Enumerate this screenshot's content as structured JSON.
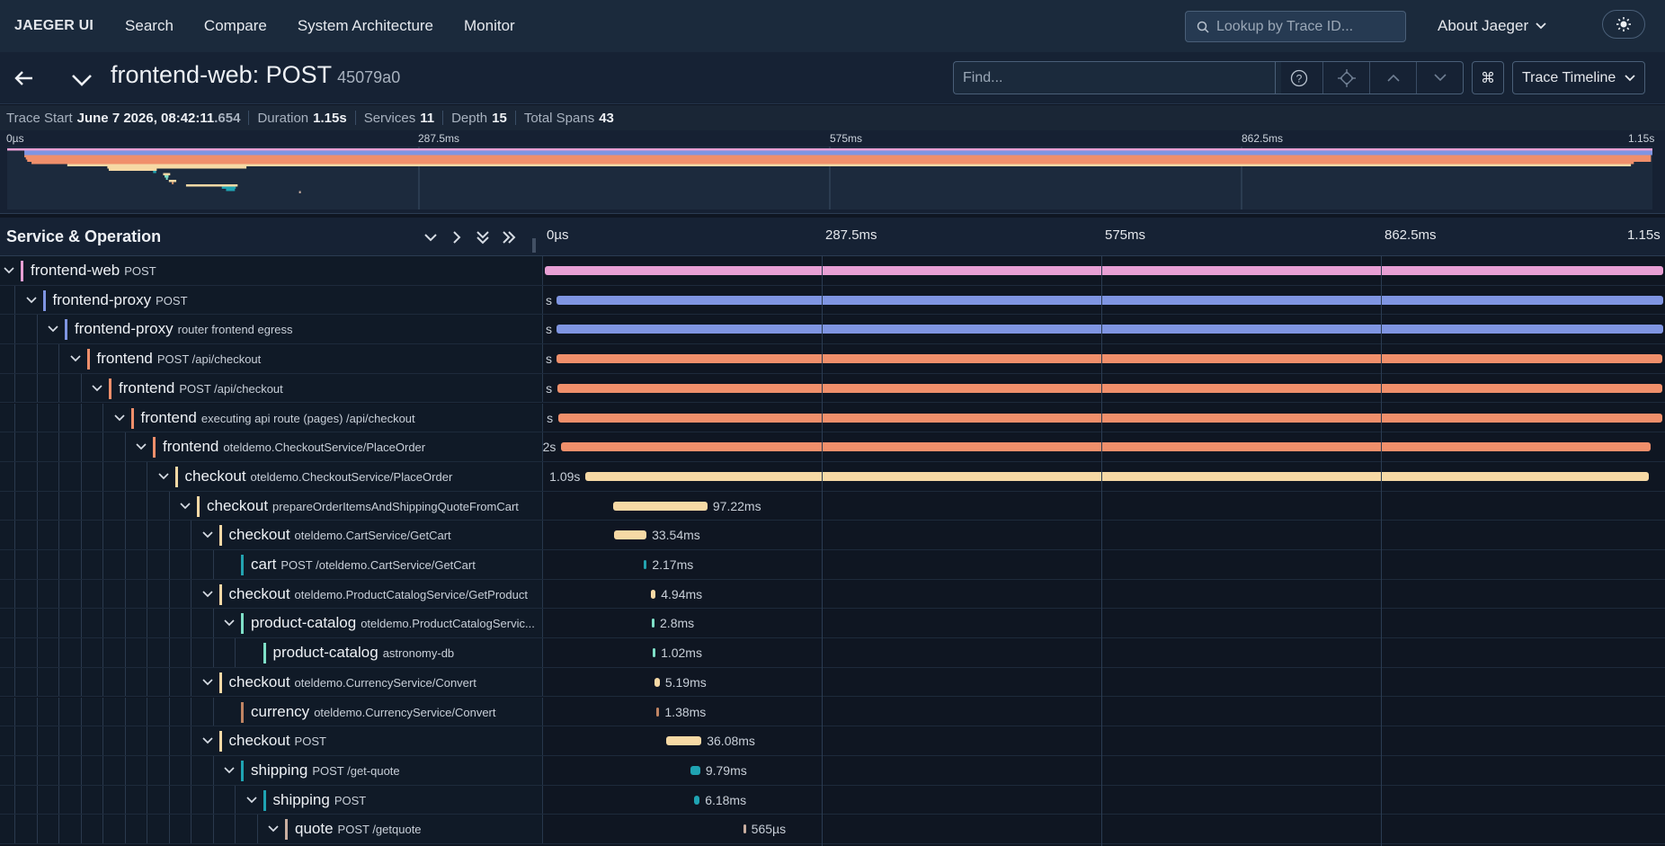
{
  "nav": {
    "brand": "JAEGER UI",
    "links": [
      "Search",
      "Compare",
      "System Architecture",
      "Monitor"
    ],
    "lookup_placeholder": "Lookup by Trace ID...",
    "about": "About Jaeger"
  },
  "trace": {
    "title": "frontend-web: POST",
    "id": "45079a0",
    "find_placeholder": "Find...",
    "view_mode": "Trace Timeline",
    "cmd_icon": "⌘"
  },
  "meta": {
    "trace_start_label": "Trace Start",
    "trace_start_date": "June 7 2026, 08:42:11",
    "trace_start_ms": ".654",
    "duration_label": "Duration",
    "duration": "1.15s",
    "services_label": "Services",
    "services": "11",
    "depth_label": "Depth",
    "depth": "15",
    "total_spans_label": "Total Spans",
    "total_spans": "43"
  },
  "minimap": {
    "ticks": [
      "0µs",
      "287.5ms",
      "575ms",
      "862.5ms",
      "1.15s"
    ]
  },
  "timeline": {
    "header_title": "Service & Operation",
    "ticks": [
      "0µs",
      "287.5ms",
      "575ms",
      "862.5ms",
      "1.15s"
    ],
    "total_ms": 1150
  },
  "colors": {
    "frontend-web": "#e89fd4",
    "frontend-proxy": "#7f95e2",
    "frontend": "#f08f6b",
    "checkout": "#f6d9a5",
    "cart": "#23a3b0",
    "product-catalog": "#7fe0c8",
    "currency": "#c08463",
    "shipping": "#1fa3b2",
    "quote": "#c9aea0"
  },
  "spans": [
    {
      "service": "frontend-web",
      "operation": "POST",
      "depth": 0,
      "has_children": true,
      "start_ms": 0,
      "duration_ms": 1150,
      "label": ""
    },
    {
      "service": "frontend-proxy",
      "operation": "POST",
      "depth": 1,
      "has_children": true,
      "start_ms": 12,
      "duration_ms": 1138,
      "label": "s"
    },
    {
      "service": "frontend-proxy",
      "operation": "router frontend egress",
      "depth": 2,
      "has_children": true,
      "start_ms": 12,
      "duration_ms": 1138,
      "label": "s"
    },
    {
      "service": "frontend",
      "operation": "POST /api/checkout",
      "depth": 3,
      "has_children": true,
      "start_ms": 12,
      "duration_ms": 1137,
      "label": "s"
    },
    {
      "service": "frontend",
      "operation": "POST /api/checkout",
      "depth": 4,
      "has_children": true,
      "start_ms": 13,
      "duration_ms": 1136,
      "label": "s"
    },
    {
      "service": "frontend",
      "operation": "executing api route (pages) /api/checkout",
      "depth": 5,
      "has_children": true,
      "start_ms": 14,
      "duration_ms": 1135,
      "label": "s"
    },
    {
      "service": "frontend",
      "operation": "oteldemo.CheckoutService/PlaceOrder",
      "depth": 6,
      "has_children": true,
      "start_ms": 17,
      "duration_ms": 1120,
      "label": "2s"
    },
    {
      "service": "checkout",
      "operation": "oteldemo.CheckoutService/PlaceOrder",
      "depth": 7,
      "has_children": true,
      "start_ms": 42,
      "duration_ms": 1093,
      "label": "1.09s"
    },
    {
      "service": "checkout",
      "operation": "prepareOrderItemsAndShippingQuoteFromCart",
      "depth": 8,
      "has_children": true,
      "start_ms": 70,
      "duration_ms": 97.22,
      "label": "97.22ms"
    },
    {
      "service": "checkout",
      "operation": "oteldemo.CartService/GetCart",
      "depth": 9,
      "has_children": true,
      "start_ms": 71,
      "duration_ms": 33.54,
      "label": "33.54ms"
    },
    {
      "service": "cart",
      "operation": "POST /oteldemo.CartService/GetCart",
      "depth": 10,
      "has_children": false,
      "start_ms": 102,
      "duration_ms": 2.17,
      "label": "2.17ms"
    },
    {
      "service": "checkout",
      "operation": "oteldemo.ProductCatalogService/GetProduct",
      "depth": 9,
      "has_children": true,
      "start_ms": 109,
      "duration_ms": 4.94,
      "label": "4.94ms"
    },
    {
      "service": "product-catalog",
      "operation": "oteldemo.ProductCatalogServic...",
      "depth": 10,
      "has_children": true,
      "start_ms": 110,
      "duration_ms": 2.8,
      "label": "2.8ms"
    },
    {
      "service": "product-catalog",
      "operation": "astronomy-db",
      "depth": 11,
      "has_children": false,
      "start_ms": 111,
      "duration_ms": 1.02,
      "label": "1.02ms"
    },
    {
      "service": "checkout",
      "operation": "oteldemo.CurrencyService/Convert",
      "depth": 9,
      "has_children": true,
      "start_ms": 113,
      "duration_ms": 5.19,
      "label": "5.19ms"
    },
    {
      "service": "currency",
      "operation": "oteldemo.CurrencyService/Convert",
      "depth": 10,
      "has_children": false,
      "start_ms": 115,
      "duration_ms": 1.38,
      "label": "1.38ms"
    },
    {
      "service": "checkout",
      "operation": "POST",
      "depth": 9,
      "has_children": true,
      "start_ms": 125,
      "duration_ms": 36.08,
      "label": "36.08ms"
    },
    {
      "service": "shipping",
      "operation": "POST /get-quote",
      "depth": 10,
      "has_children": true,
      "start_ms": 150,
      "duration_ms": 9.79,
      "label": "9.79ms"
    },
    {
      "service": "shipping",
      "operation": "POST",
      "depth": 11,
      "has_children": true,
      "start_ms": 153,
      "duration_ms": 6.18,
      "label": "6.18ms"
    },
    {
      "service": "quote",
      "operation": "POST /getquote",
      "depth": 12,
      "has_children": true,
      "start_ms": 204,
      "duration_ms": 0.565,
      "label": "565µs"
    }
  ]
}
